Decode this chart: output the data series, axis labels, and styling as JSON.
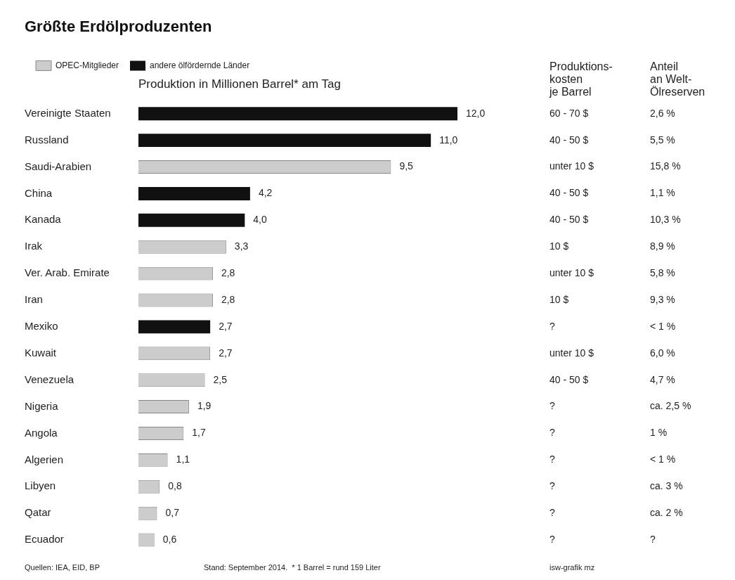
{
  "chart_data": {
    "type": "bar",
    "orientation": "horizontal",
    "title": "Größte Erdölproduzenten",
    "xlabel": "Produktion in Millionen Barrel* am Tag",
    "categories": [
      "Vereinigte Staaten",
      "Russland",
      "Saudi-Arabien",
      "China",
      "Kanada",
      "Irak",
      "Ver. Arab. Emirate",
      "Iran",
      "Mexiko",
      "Kuwait",
      "Venezuela",
      "Nigeria",
      "Angola",
      "Algerien",
      "Libyen",
      "Qatar",
      "Ecuador"
    ],
    "series": [
      {
        "name": "OPEC-Mitglieder",
        "color": "#cccccc",
        "values": [
          null,
          null,
          9.5,
          null,
          null,
          3.3,
          2.8,
          2.8,
          null,
          2.7,
          2.5,
          1.9,
          1.7,
          1.1,
          0.8,
          0.7,
          0.6
        ],
        "value_labels": [
          null,
          null,
          "9,5",
          null,
          null,
          "3,3",
          "2,8",
          "2,8",
          null,
          "2,7",
          "2,5",
          "1,9",
          "1,7",
          "1,1",
          "0,8",
          "0,7",
          "0,6"
        ]
      },
      {
        "name": "andere ölfördernde Länder",
        "color": "#111111",
        "values": [
          12.0,
          11.0,
          null,
          4.2,
          4.0,
          null,
          null,
          null,
          2.7,
          null,
          null,
          null,
          null,
          null,
          null,
          null,
          null
        ],
        "value_labels": [
          "12,0",
          "11,0",
          null,
          "4,2",
          "4,0",
          null,
          null,
          null,
          "2,7",
          null,
          null,
          null,
          null,
          null,
          null,
          null,
          null
        ]
      }
    ],
    "tick_labels": "y",
    "legend": "top left",
    "annotations": [
      "Produktions-\nkosten\nje Barrel",
      "Anteil\nan Welt-\nÖlreserven",
      "60 - 70 $",
      "2,6 %",
      "40 - 50 $",
      "5,5 %",
      "unter 10 $",
      "15,8 %",
      "40 - 50 $",
      "1,1 %",
      "40 - 50 $",
      "10,3 %",
      "10 $",
      "8,9 %",
      "unter 10 $",
      "5,8 %",
      "10 $",
      "9,3 %",
      "?",
      "< 1 %",
      "unter 10 $",
      "6,0 %",
      "40 - 50 $",
      "4,7 %",
      "?",
      "ca. 2,5 %",
      "?",
      "1 %",
      "?",
      "< 1 %",
      "?",
      "ca. 3 %",
      "?",
      "ca. 2 %",
      "?",
      "?",
      "Quellen: IEA, EID, BP",
      "Stand: September 2014.  * 1 Barrel = rund 159 Liter",
      "isw-grafik mz"
    ]
  }
}
